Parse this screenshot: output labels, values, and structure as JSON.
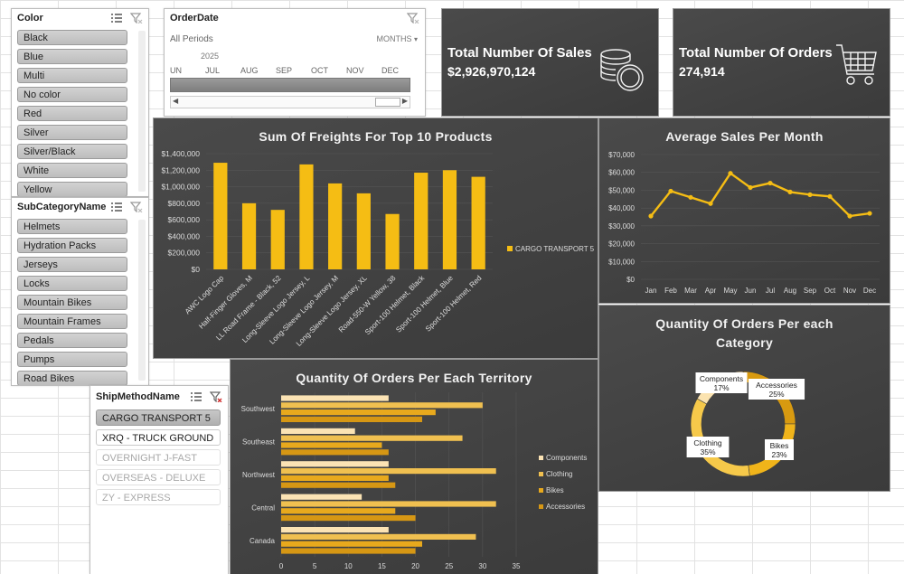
{
  "color_slicer": {
    "title": "Color",
    "items": [
      "Black",
      "Blue",
      "Multi",
      "No color",
      "Red",
      "Silver",
      "Silver/Black",
      "White",
      "Yellow"
    ]
  },
  "orderdate_slicer": {
    "title": "OrderDate",
    "period_label": "All Periods",
    "level_label": "MONTHS",
    "year": "2025",
    "months": [
      "UN",
      "JUL",
      "AUG",
      "SEP",
      "OCT",
      "NOV",
      "DEC"
    ]
  },
  "subcategory_slicer": {
    "title": "SubCategoryName",
    "items": [
      "Helmets",
      "Hydration Packs",
      "Jerseys",
      "Locks",
      "Mountain Bikes",
      "Mountain Frames",
      "Pedals",
      "Pumps",
      "Road Bikes"
    ]
  },
  "shipmethod_slicer": {
    "title": "ShipMethodName",
    "items": [
      {
        "label": "CARGO TRANSPORT 5",
        "state": "selected"
      },
      {
        "label": "XRQ - TRUCK GROUND",
        "state": "available"
      },
      {
        "label": "OVERNIGHT J-FAST",
        "state": "nodata"
      },
      {
        "label": "OVERSEAS - DELUXE",
        "state": "nodata"
      },
      {
        "label": "ZY - EXPRESS",
        "state": "nodata"
      }
    ]
  },
  "kpi_sales": {
    "title": "Total Number Of Sales",
    "value": "$2,926,970,124",
    "icon": "coins-icon"
  },
  "kpi_orders": {
    "title": "Total Number Of Orders",
    "value": "274,914",
    "icon": "shopping-cart-icon"
  },
  "colors": {
    "gold": "#f5bd14",
    "card_bg": "#3f3f3f",
    "line": "#f5bd14"
  },
  "chart_data": [
    {
      "id": "freights",
      "type": "bar",
      "title": "Sum Of Freights For Top 10 Products",
      "categories": [
        "AWC Logo Cap",
        "Half-Finger Gloves, M",
        "LL Road Frame - Black, 52",
        "Long-Sleeve Logo Jersey, L",
        "Long-Sleeve Logo Jersey, M",
        "Long-Sleeve Logo Jersey, XL",
        "Road-550-W Yellow, 38",
        "Sport-100 Helmet, Black",
        "Sport-100 Helmet, Blue",
        "Sport-100 Helmet, Red"
      ],
      "series": [
        {
          "name": "CARGO TRANSPORT 5",
          "values": [
            1290000,
            800000,
            720000,
            1270000,
            1040000,
            920000,
            670000,
            1170000,
            1200000,
            1120000
          ]
        }
      ],
      "y_ticks": [
        "$0",
        "$200,000",
        "$400,000",
        "$600,000",
        "$800,000",
        "$1,000,000",
        "$1,200,000",
        "$1,400,000"
      ],
      "ylim": [
        0,
        1400000
      ],
      "legend": "right"
    },
    {
      "id": "avg_sales",
      "type": "line",
      "title": "Average Sales Per Month",
      "categories": [
        "Jan",
        "Feb",
        "Mar",
        "Apr",
        "May",
        "Jun",
        "Jul",
        "Aug",
        "Sep",
        "Oct",
        "Nov",
        "Dec"
      ],
      "values": [
        35500,
        49500,
        46000,
        42500,
        59500,
        51500,
        54000,
        49000,
        47500,
        46500,
        35500,
        37000
      ],
      "y_ticks": [
        "$0",
        "$10,000",
        "$20,000",
        "$30,000",
        "$40,000",
        "$50,000",
        "$60,000",
        "$70,000"
      ],
      "ylim": [
        0,
        70000
      ]
    },
    {
      "id": "territory",
      "type": "bar",
      "orientation": "horizontal",
      "title": "Quantity Of Orders Per Each Territory",
      "categories": [
        "Canada",
        "Central",
        "Northwest",
        "Southeast",
        "Southwest"
      ],
      "series": [
        {
          "name": "Components",
          "color": "#fbe3b4",
          "values": [
            16,
            12,
            16,
            11,
            16
          ]
        },
        {
          "name": "Clothing",
          "color": "#f0c050",
          "values": [
            29,
            32,
            32,
            27,
            30
          ]
        },
        {
          "name": "Bikes",
          "color": "#e8a91d",
          "values": [
            21,
            17,
            16,
            15,
            23
          ]
        },
        {
          "name": "Accessories",
          "color": "#d69714",
          "values": [
            20,
            20,
            17,
            16,
            21
          ]
        }
      ],
      "x_ticks": [
        "0",
        "5",
        "10",
        "15",
        "20",
        "25",
        "30",
        "35"
      ],
      "xlim": [
        0,
        35
      ],
      "legend": "right"
    },
    {
      "id": "category",
      "type": "pie",
      "title": "Quantity Of Orders Per each Category",
      "slices": [
        {
          "name": "Accessories",
          "label": "25%",
          "value": 25,
          "color": "#d89a10"
        },
        {
          "name": "Bikes",
          "label": "23%",
          "value": 23,
          "color": "#f0b41a"
        },
        {
          "name": "Clothing",
          "label": "35%",
          "value": 35,
          "color": "#f6c94a"
        },
        {
          "name": "Components",
          "label": "17%",
          "value": 17,
          "color": "#fbe3b0"
        }
      ]
    }
  ]
}
